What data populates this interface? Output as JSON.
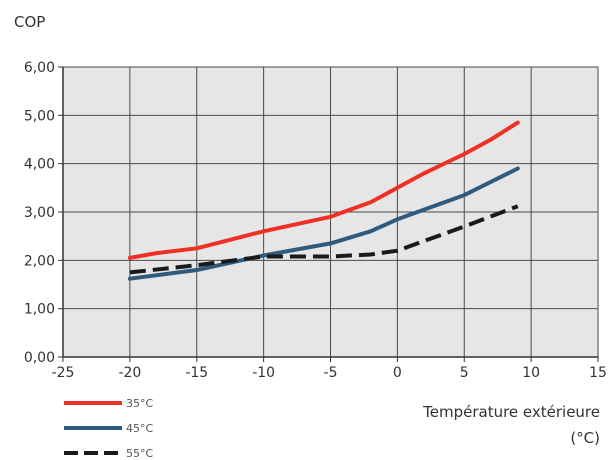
{
  "chart_data": {
    "type": "line",
    "ylabel": "COP",
    "xlabel_line1": "Température extérieure",
    "xlabel_line2": "(°C)",
    "xlim": [
      -25,
      15
    ],
    "ylim": [
      0,
      6
    ],
    "x_ticks": [
      -25,
      -20,
      -15,
      -10,
      -5,
      0,
      5,
      10,
      15
    ],
    "x_tick_labels": [
      "-25",
      "-20",
      "-15",
      "-10",
      "-5",
      "0",
      "5",
      "10",
      "15"
    ],
    "y_ticks": [
      0,
      1,
      2,
      3,
      4,
      5,
      6
    ],
    "y_tick_labels": [
      "0,00",
      "1,00",
      "2,00",
      "3,00",
      "4,00",
      "5,00",
      "6,00"
    ],
    "grid": true,
    "plot_background": "#e6e6e6",
    "grid_color": "#4a4a4a",
    "legend_position": "bottom-left",
    "series": [
      {
        "name": "35°C",
        "color": "#ee3124",
        "dash": "solid",
        "x": [
          -20,
          -18,
          -15,
          -10,
          -5,
          -2,
          0,
          2,
          5,
          7,
          9
        ],
        "y": [
          2.05,
          2.15,
          2.25,
          2.6,
          2.9,
          3.2,
          3.5,
          3.8,
          4.2,
          4.5,
          4.85
        ]
      },
      {
        "name": "45°C",
        "color": "#2f5b7e",
        "dash": "solid",
        "x": [
          -20,
          -15,
          -10,
          -5,
          -2,
          0,
          5,
          9
        ],
        "y": [
          1.62,
          1.8,
          2.1,
          2.35,
          2.6,
          2.85,
          3.35,
          3.9
        ]
      },
      {
        "name": "55°C",
        "color": "#1a1a1a",
        "dash": "dashed",
        "x": [
          -20,
          -15,
          -10,
          -5,
          -2,
          0,
          2,
          5,
          9
        ],
        "y": [
          1.75,
          1.9,
          2.08,
          2.08,
          2.12,
          2.2,
          2.4,
          2.7,
          3.12
        ]
      }
    ]
  }
}
